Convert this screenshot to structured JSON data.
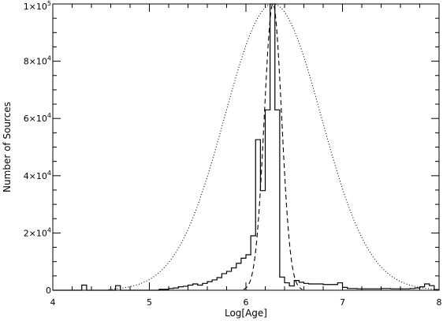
{
  "chart_data": {
    "type": "line",
    "title": "",
    "xlabel": "Log[Age]",
    "ylabel": "Number of Sources",
    "xlim": [
      4,
      8
    ],
    "ylim": [
      0,
      100000
    ],
    "grid": false,
    "x_ticks": [
      {
        "value": 4,
        "label": "4"
      },
      {
        "value": 5,
        "label": "5"
      },
      {
        "value": 6,
        "label": "6"
      },
      {
        "value": 7,
        "label": "7"
      },
      {
        "value": 8,
        "label": "8"
      }
    ],
    "x_minor_step": 0.2,
    "y_ticks": [
      {
        "value": 0,
        "mantissa": "0",
        "exponent": ""
      },
      {
        "value": 20000,
        "mantissa": "2×10",
        "exponent": "4"
      },
      {
        "value": 40000,
        "mantissa": "4×10",
        "exponent": "4"
      },
      {
        "value": 60000,
        "mantissa": "6×10",
        "exponent": "4"
      },
      {
        "value": 80000,
        "mantissa": "8×10",
        "exponent": "4"
      },
      {
        "value": 100000,
        "mantissa": "1×10",
        "exponent": "5"
      }
    ],
    "y_minor_step": 5000,
    "series": [
      {
        "style": "solid-histogram",
        "bin_width": 0.05,
        "x": [
          4.0,
          4.05,
          4.1,
          4.15,
          4.2,
          4.25,
          4.3,
          4.35,
          4.4,
          4.45,
          4.5,
          4.55,
          4.6,
          4.65,
          4.7,
          4.75,
          4.8,
          4.85,
          4.9,
          4.95,
          5.0,
          5.05,
          5.1,
          5.15,
          5.2,
          5.25,
          5.3,
          5.35,
          5.4,
          5.45,
          5.5,
          5.55,
          5.6,
          5.65,
          5.7,
          5.75,
          5.8,
          5.85,
          5.9,
          5.95,
          6.0,
          6.05,
          6.1,
          6.15,
          6.2,
          6.25,
          6.3,
          6.35,
          6.4,
          6.45,
          6.5,
          6.55,
          6.6,
          6.65,
          6.7,
          6.75,
          6.8,
          6.85,
          6.9,
          6.95,
          7.0,
          7.05,
          7.1,
          7.15,
          7.2,
          7.25,
          7.3,
          7.35,
          7.4,
          7.45,
          7.5,
          7.55,
          7.6,
          7.65,
          7.7,
          7.75,
          7.8,
          7.85,
          7.9,
          7.95
        ],
        "values": [
          0,
          0,
          0,
          0,
          0,
          0,
          1800,
          0,
          0,
          0,
          0,
          0,
          0,
          1600,
          0,
          0,
          0,
          0,
          0,
          0,
          0,
          0,
          300,
          300,
          600,
          800,
          1200,
          1400,
          1800,
          2200,
          1800,
          2400,
          3000,
          3600,
          4400,
          5800,
          6600,
          7800,
          9400,
          11200,
          12400,
          19000,
          52600,
          34800,
          63000,
          100000,
          63000,
          4600,
          2600,
          1500,
          3400,
          2800,
          2400,
          2200,
          2200,
          2200,
          2000,
          2000,
          2000,
          2600,
          1000,
          600,
          600,
          500,
          500,
          500,
          500,
          500,
          600,
          600,
          500,
          500,
          500,
          500,
          600,
          800,
          1200,
          2200,
          1600,
          200
        ]
      },
      {
        "style": "dashed",
        "distribution": "gaussian",
        "mean": 6.28,
        "sigma": 0.09,
        "peak": 100000
      },
      {
        "style": "dotted",
        "distribution": "gaussian",
        "mean": 6.28,
        "sigma": 0.5,
        "peak": 100000
      }
    ]
  }
}
